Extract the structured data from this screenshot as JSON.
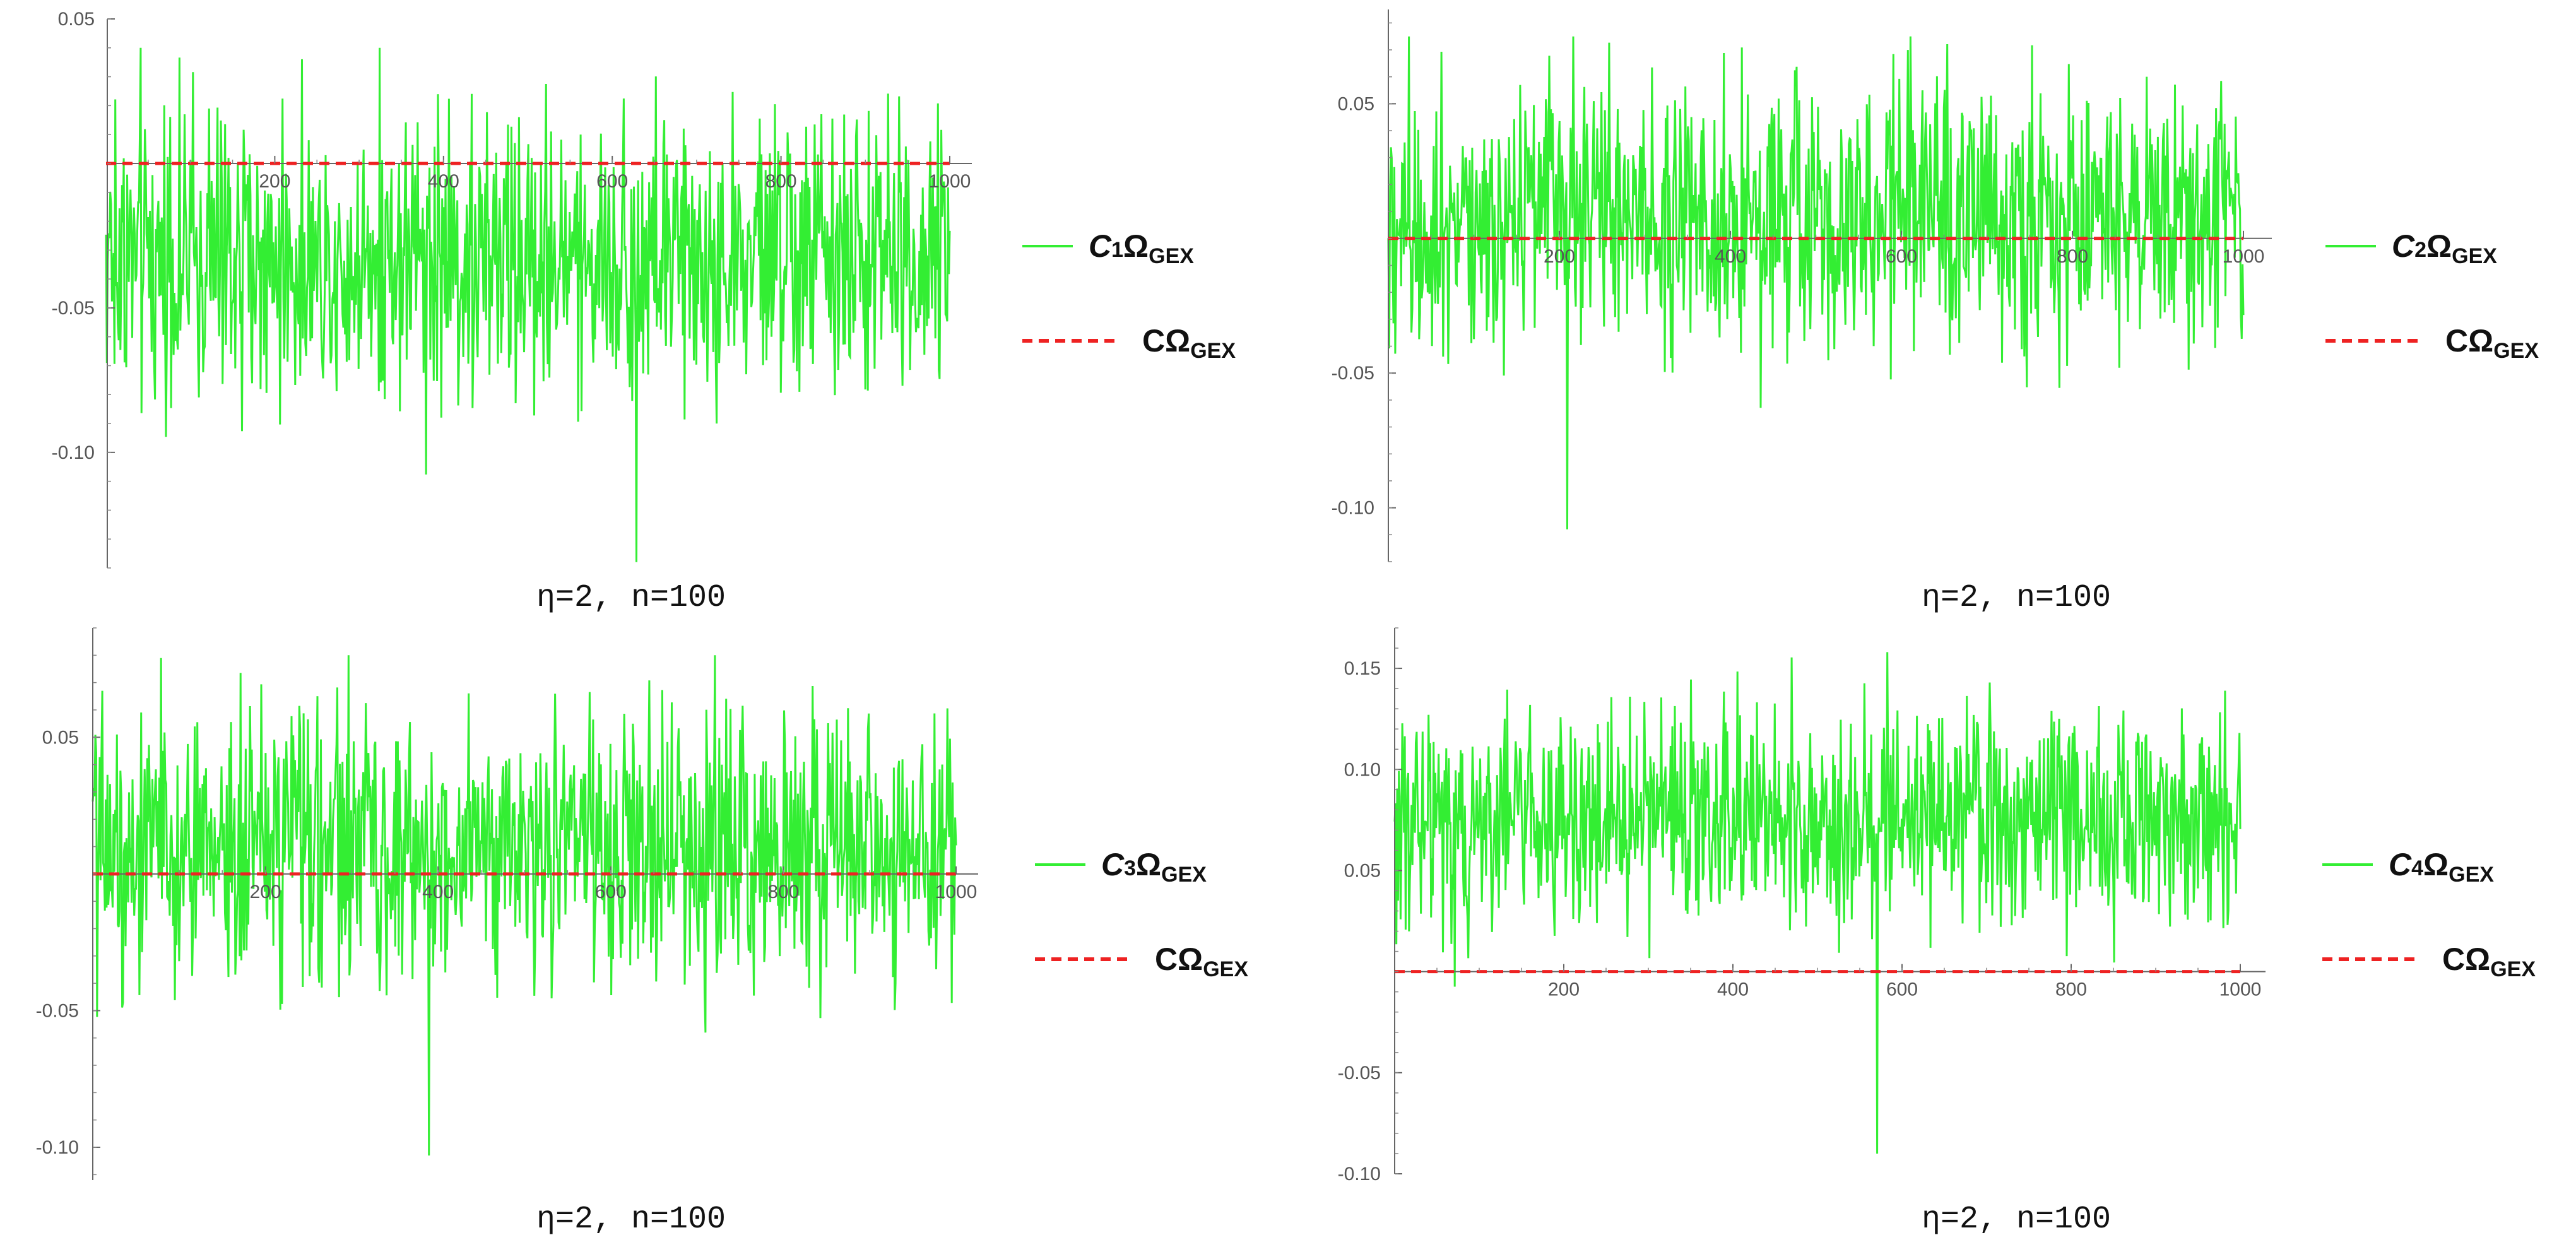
{
  "chart_data": [
    {
      "type": "line",
      "caption": "η=2, n=100",
      "xticks": [
        "200",
        "400",
        "600",
        "800",
        "1000"
      ],
      "yticks": [
        "0.05",
        "-0.05",
        "-0.10"
      ],
      "ytick_values": [
        0.05,
        -0.05,
        -0.1
      ],
      "xlim": [
        0,
        1000
      ],
      "ylim": [
        -0.14,
        0.05
      ],
      "x_axis_at_y": 0,
      "series": [
        {
          "name_main": "C",
          "name_index": "1",
          "name_omega": "Ω",
          "name_sub": "GEX",
          "style": "solid",
          "color": "#33ee33",
          "n_points": 1000,
          "mean": -0.033,
          "amplitude": 0.025,
          "max": 0.04,
          "min": -0.138
        },
        {
          "name_main": "C",
          "name_index": "",
          "name_omega": "Ω",
          "name_sub": "GEX",
          "style": "dashed",
          "color": "#ee2222",
          "x": [
            0,
            1000
          ],
          "y": [
            0,
            0
          ]
        }
      ]
    },
    {
      "type": "line",
      "caption": "η=2, n=100",
      "xticks": [
        "200",
        "400",
        "600",
        "800",
        "1000"
      ],
      "yticks": [
        "0.05",
        "-0.05",
        "-0.10"
      ],
      "ytick_values": [
        0.05,
        -0.05,
        -0.1
      ],
      "xlim": [
        0,
        1000
      ],
      "ylim": [
        -0.12,
        0.085
      ],
      "x_axis_at_y": 0,
      "series": [
        {
          "name_main": "C",
          "name_index": "2",
          "name_omega": "Ω",
          "name_sub": "GEX",
          "style": "solid",
          "color": "#33ee33",
          "n_points": 1000,
          "mean": 0.009,
          "amplitude": 0.025,
          "max": 0.075,
          "min": -0.108
        },
        {
          "name_main": "C",
          "name_index": "",
          "name_omega": "Ω",
          "name_sub": "GEX",
          "style": "dashed",
          "color": "#ee2222",
          "x": [
            0,
            1000
          ],
          "y": [
            0,
            0
          ]
        }
      ]
    },
    {
      "type": "line",
      "caption": "η=2, n=100",
      "xticks": [
        "200",
        "400",
        "600",
        "800",
        "1000"
      ],
      "yticks": [
        "0.05",
        "-0.05",
        "-0.10"
      ],
      "ytick_values": [
        0.05,
        -0.05,
        -0.1
      ],
      "xlim": [
        0,
        1000
      ],
      "ylim": [
        -0.112,
        0.09
      ],
      "x_axis_at_y": 0,
      "series": [
        {
          "name_main": "C",
          "name_index": "3",
          "name_omega": "Ω",
          "name_sub": "GEX",
          "style": "solid",
          "color": "#33ee33",
          "n_points": 1000,
          "mean": 0.01,
          "amplitude": 0.025,
          "max": 0.08,
          "min": -0.103
        },
        {
          "name_main": "C",
          "name_index": "",
          "name_omega": "Ω",
          "name_sub": "GEX",
          "style": "dashed",
          "color": "#ee2222",
          "x": [
            0,
            1000
          ],
          "y": [
            0,
            0
          ]
        }
      ]
    },
    {
      "type": "line",
      "caption": "η=2, n=100",
      "xticks": [
        "200",
        "400",
        "600",
        "800",
        "1000"
      ],
      "yticks": [
        "0.15",
        "0.10",
        "0.05",
        "-0.05",
        "-0.10"
      ],
      "ytick_values": [
        0.15,
        0.1,
        0.05,
        -0.05,
        -0.1
      ],
      "xlim": [
        0,
        1000
      ],
      "ylim": [
        -0.1,
        0.17
      ],
      "x_axis_at_y": 0,
      "series": [
        {
          "name_main": "C",
          "name_index": "4",
          "name_omega": "Ω",
          "name_sub": "GEX",
          "style": "solid",
          "color": "#33ee33",
          "n_points": 1000,
          "mean": 0.075,
          "amplitude": 0.027,
          "max": 0.158,
          "min": -0.09
        },
        {
          "name_main": "C",
          "name_index": "",
          "name_omega": "Ω",
          "name_sub": "GEX",
          "style": "dashed",
          "color": "#ee2222",
          "x": [
            0,
            1000
          ],
          "y": [
            0,
            0
          ]
        }
      ]
    }
  ]
}
